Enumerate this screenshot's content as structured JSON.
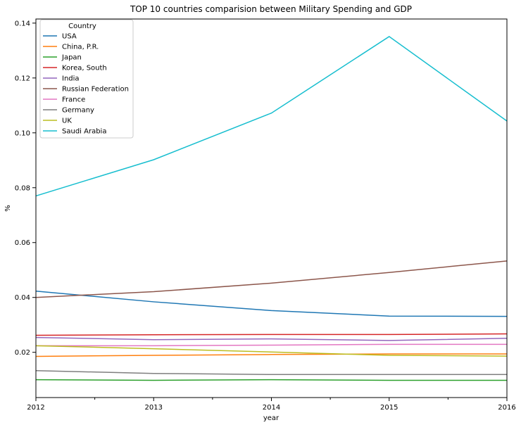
{
  "chart_data": {
    "type": "line",
    "title": "TOP 10 countries comparision between Military Spending and GDP",
    "xlabel": "year",
    "ylabel": "%",
    "x": [
      2012,
      2013,
      2014,
      2015,
      2016
    ],
    "xlim": [
      2012,
      2016
    ],
    "ylim": [
      0.0035,
      0.1415
    ],
    "yticks": [
      "0.02",
      "0.04",
      "0.06",
      "0.08",
      "0.10",
      "0.12",
      "0.14"
    ],
    "xticks": [
      "2012",
      "2013",
      "2014",
      "2015",
      "2016"
    ],
    "grid": false,
    "legend": {
      "title": "Country",
      "placement": "top-left"
    },
    "series": [
      {
        "name": "USA",
        "color": "#1f77b4",
        "values": [
          0.0423,
          0.0384,
          0.0352,
          0.0332,
          0.0331
        ]
      },
      {
        "name": "China, P.R.",
        "color": "#ff7f0e",
        "values": [
          0.0185,
          0.0189,
          0.0192,
          0.0194,
          0.0194
        ]
      },
      {
        "name": "Japan",
        "color": "#2ca02c",
        "values": [
          0.01,
          0.0098,
          0.01,
          0.0098,
          0.0098
        ]
      },
      {
        "name": "Korea, South",
        "color": "#d62728",
        "values": [
          0.0262,
          0.0264,
          0.0265,
          0.0265,
          0.0267
        ]
      },
      {
        "name": "India",
        "color": "#9467bd",
        "values": [
          0.0254,
          0.0246,
          0.0249,
          0.0243,
          0.0251
        ]
      },
      {
        "name": "Russian Federation",
        "color": "#8c564b",
        "values": [
          0.04,
          0.0421,
          0.0452,
          0.0491,
          0.0533
        ]
      },
      {
        "name": "France",
        "color": "#e377c2",
        "values": [
          0.0224,
          0.0224,
          0.0226,
          0.0229,
          0.0229
        ]
      },
      {
        "name": "Germany",
        "color": "#7f7f7f",
        "values": [
          0.0133,
          0.0123,
          0.0119,
          0.0119,
          0.0119
        ]
      },
      {
        "name": "UK",
        "color": "#bcbd22",
        "values": [
          0.0224,
          0.0213,
          0.0201,
          0.0189,
          0.0186
        ]
      },
      {
        "name": "Saudi Arabia",
        "color": "#17becf",
        "values": [
          0.077,
          0.0902,
          0.1072,
          0.1351,
          0.1043
        ]
      }
    ]
  }
}
